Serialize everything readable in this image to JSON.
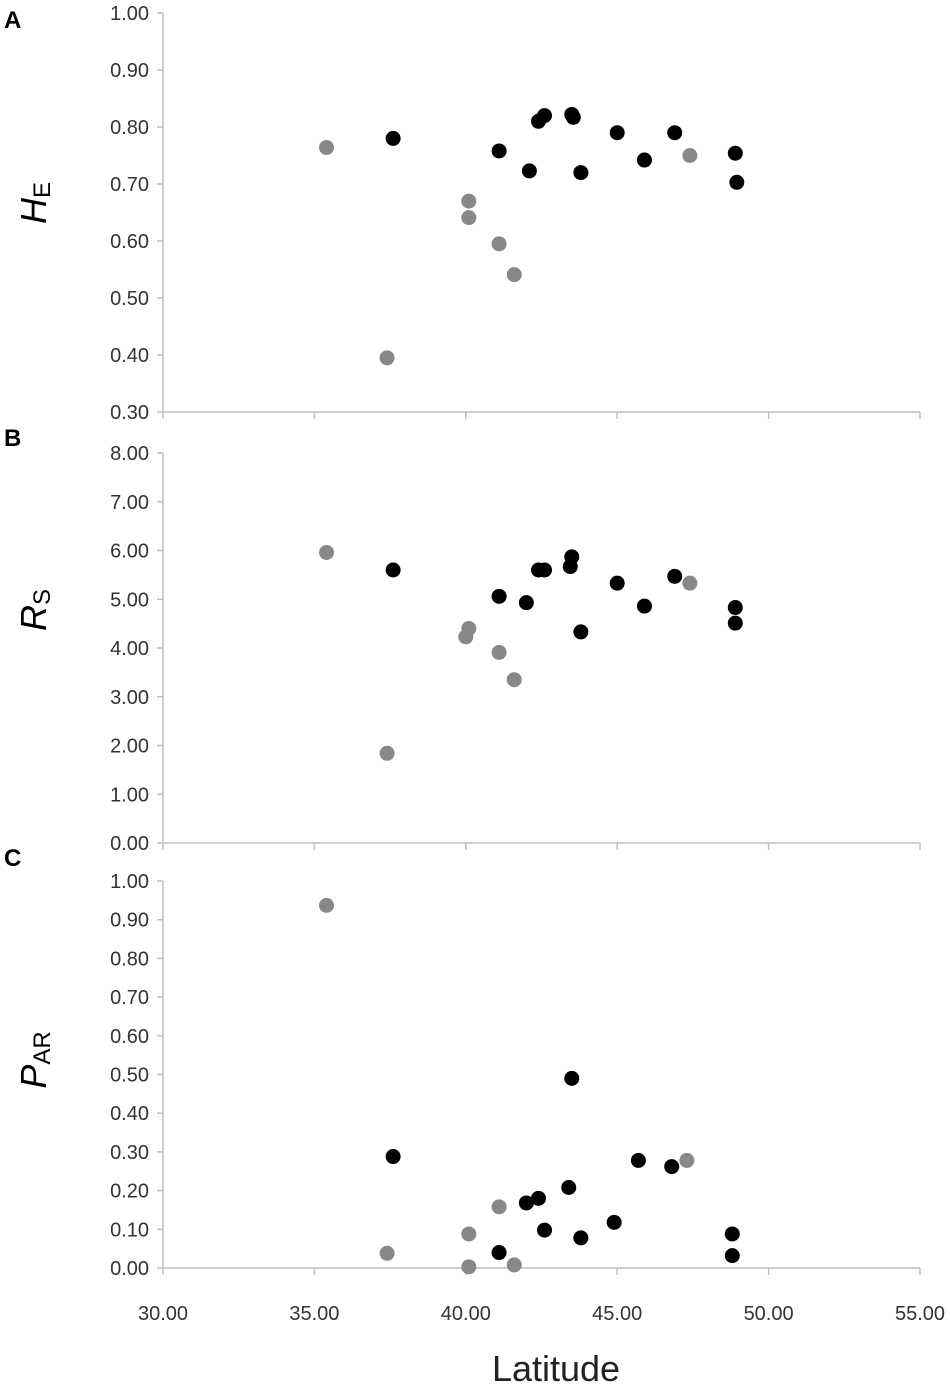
{
  "colors": {
    "dark_points": "#000000",
    "light_points": "#888888",
    "axis": "#bfbfbf"
  },
  "xlabel": "Latitude",
  "x_ticks": [
    "30.00",
    "35.00",
    "40.00",
    "45.00",
    "50.00",
    "55.00"
  ],
  "chart_data": [
    {
      "type": "scatter",
      "panel": "A",
      "ylabel_main": "H",
      "ylabel_sub": "E",
      "xlim": [
        30,
        55
      ],
      "ylim": [
        0.3,
        1.0
      ],
      "y_ticks": [
        "0.30",
        "0.40",
        "0.50",
        "0.60",
        "0.70",
        "0.80",
        "0.90",
        "1.00"
      ],
      "grid": false,
      "series": [
        {
          "color": "#000000",
          "points": [
            [
              37.6,
              0.78
            ],
            [
              41.1,
              0.758
            ],
            [
              42.1,
              0.723
            ],
            [
              42.4,
              0.81
            ],
            [
              42.6,
              0.82
            ],
            [
              43.5,
              0.822
            ],
            [
              43.55,
              0.817
            ],
            [
              43.8,
              0.72
            ],
            [
              45.0,
              0.79
            ],
            [
              45.9,
              0.742
            ],
            [
              46.9,
              0.79
            ],
            [
              48.9,
              0.754
            ],
            [
              48.95,
              0.703
            ]
          ]
        },
        {
          "color": "#888888",
          "points": [
            [
              35.4,
              0.764
            ],
            [
              37.4,
              0.395
            ],
            [
              40.1,
              0.67
            ],
            [
              40.1,
              0.641
            ],
            [
              41.1,
              0.595
            ],
            [
              41.6,
              0.541
            ],
            [
              47.4,
              0.75
            ]
          ]
        }
      ]
    },
    {
      "type": "scatter",
      "panel": "B",
      "ylabel_main": "R",
      "ylabel_sub": "S",
      "xlim": [
        30,
        55
      ],
      "ylim": [
        0.0,
        8.0
      ],
      "y_ticks": [
        "0.00",
        "1.00",
        "2.00",
        "3.00",
        "4.00",
        "5.00",
        "6.00",
        "7.00",
        "8.00"
      ],
      "grid": false,
      "series": [
        {
          "color": "#000000",
          "points": [
            [
              37.6,
              5.6
            ],
            [
              41.1,
              5.06
            ],
            [
              42.0,
              4.93
            ],
            [
              42.4,
              5.6
            ],
            [
              42.6,
              5.6
            ],
            [
              43.5,
              5.87
            ],
            [
              43.45,
              5.67
            ],
            [
              43.8,
              4.33
            ],
            [
              45.0,
              5.33
            ],
            [
              45.9,
              4.86
            ],
            [
              46.9,
              5.47
            ],
            [
              48.9,
              4.83
            ],
            [
              48.9,
              4.51
            ]
          ]
        },
        {
          "color": "#888888",
          "points": [
            [
              35.4,
              5.96
            ],
            [
              37.4,
              1.84
            ],
            [
              40.1,
              4.4
            ],
            [
              40.0,
              4.23
            ],
            [
              41.1,
              3.91
            ],
            [
              41.6,
              3.35
            ],
            [
              47.4,
              5.33
            ]
          ]
        }
      ]
    },
    {
      "type": "scatter",
      "panel": "C",
      "ylabel_main": "P",
      "ylabel_sub": "AR",
      "xlim": [
        30,
        55
      ],
      "ylim": [
        0.0,
        1.0
      ],
      "y_ticks": [
        "0.00",
        "0.10",
        "0.20",
        "0.30",
        "0.40",
        "0.50",
        "0.60",
        "0.70",
        "0.80",
        "0.90",
        "1.00"
      ],
      "grid": false,
      "series": [
        {
          "color": "#000000",
          "points": [
            [
              37.6,
              0.288
            ],
            [
              41.1,
              0.04
            ],
            [
              42.0,
              0.168
            ],
            [
              42.4,
              0.18
            ],
            [
              42.6,
              0.098
            ],
            [
              43.5,
              0.49
            ],
            [
              43.4,
              0.208
            ],
            [
              43.8,
              0.078
            ],
            [
              44.9,
              0.118
            ],
            [
              45.7,
              0.278
            ],
            [
              46.8,
              0.262
            ],
            [
              48.8,
              0.088
            ],
            [
              48.8,
              0.032
            ]
          ]
        },
        {
          "color": "#888888",
          "points": [
            [
              35.4,
              0.937
            ],
            [
              37.4,
              0.038
            ],
            [
              40.1,
              0.088
            ],
            [
              40.1,
              0.003
            ],
            [
              41.1,
              0.158
            ],
            [
              41.6,
              0.008
            ],
            [
              47.3,
              0.278
            ]
          ]
        }
      ]
    }
  ]
}
